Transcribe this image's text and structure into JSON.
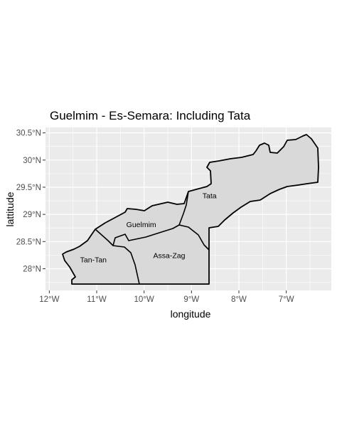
{
  "title": "Guelmim - Es-Semara: Including Tata",
  "axes": {
    "xlabel": "longitude",
    "ylabel": "lattitude",
    "xticks": [
      {
        "value": -12,
        "label": "12°W"
      },
      {
        "value": -11,
        "label": "11°W"
      },
      {
        "value": -10,
        "label": "10°W"
      },
      {
        "value": -9,
        "label": "9°W"
      },
      {
        "value": -8,
        "label": "8°W"
      },
      {
        "value": -7,
        "label": "7°W"
      }
    ],
    "yticks": [
      {
        "value": 28.0,
        "label": "28°N"
      },
      {
        "value": 28.5,
        "label": "28.5°N"
      },
      {
        "value": 29.0,
        "label": "29°N"
      },
      {
        "value": 29.5,
        "label": "29.5°N"
      },
      {
        "value": 30.0,
        "label": "30°N"
      },
      {
        "value": 30.5,
        "label": "30.5°N"
      }
    ],
    "xlim": [
      -12.08,
      -6.05
    ],
    "ylim": [
      27.6,
      30.6
    ]
  },
  "colors": {
    "panel": "#ebebeb",
    "grid": "#ffffff",
    "region_fill": "#d9d9d9",
    "border": "#000000"
  },
  "regions": [
    {
      "name": "Tata",
      "label": "Tata",
      "label_lon": -8.62,
      "label_lat": 29.35
    },
    {
      "name": "Guelmim",
      "label": "Guelmim",
      "label_lon": -10.06,
      "label_lat": 28.82
    },
    {
      "name": "Assa-Zag",
      "label": "Assa-Zag",
      "label_lon": -9.47,
      "label_lat": 28.25
    },
    {
      "name": "Tan-Tan",
      "label": "Tan-Tan",
      "label_lon": -11.07,
      "label_lat": 28.17
    }
  ]
}
